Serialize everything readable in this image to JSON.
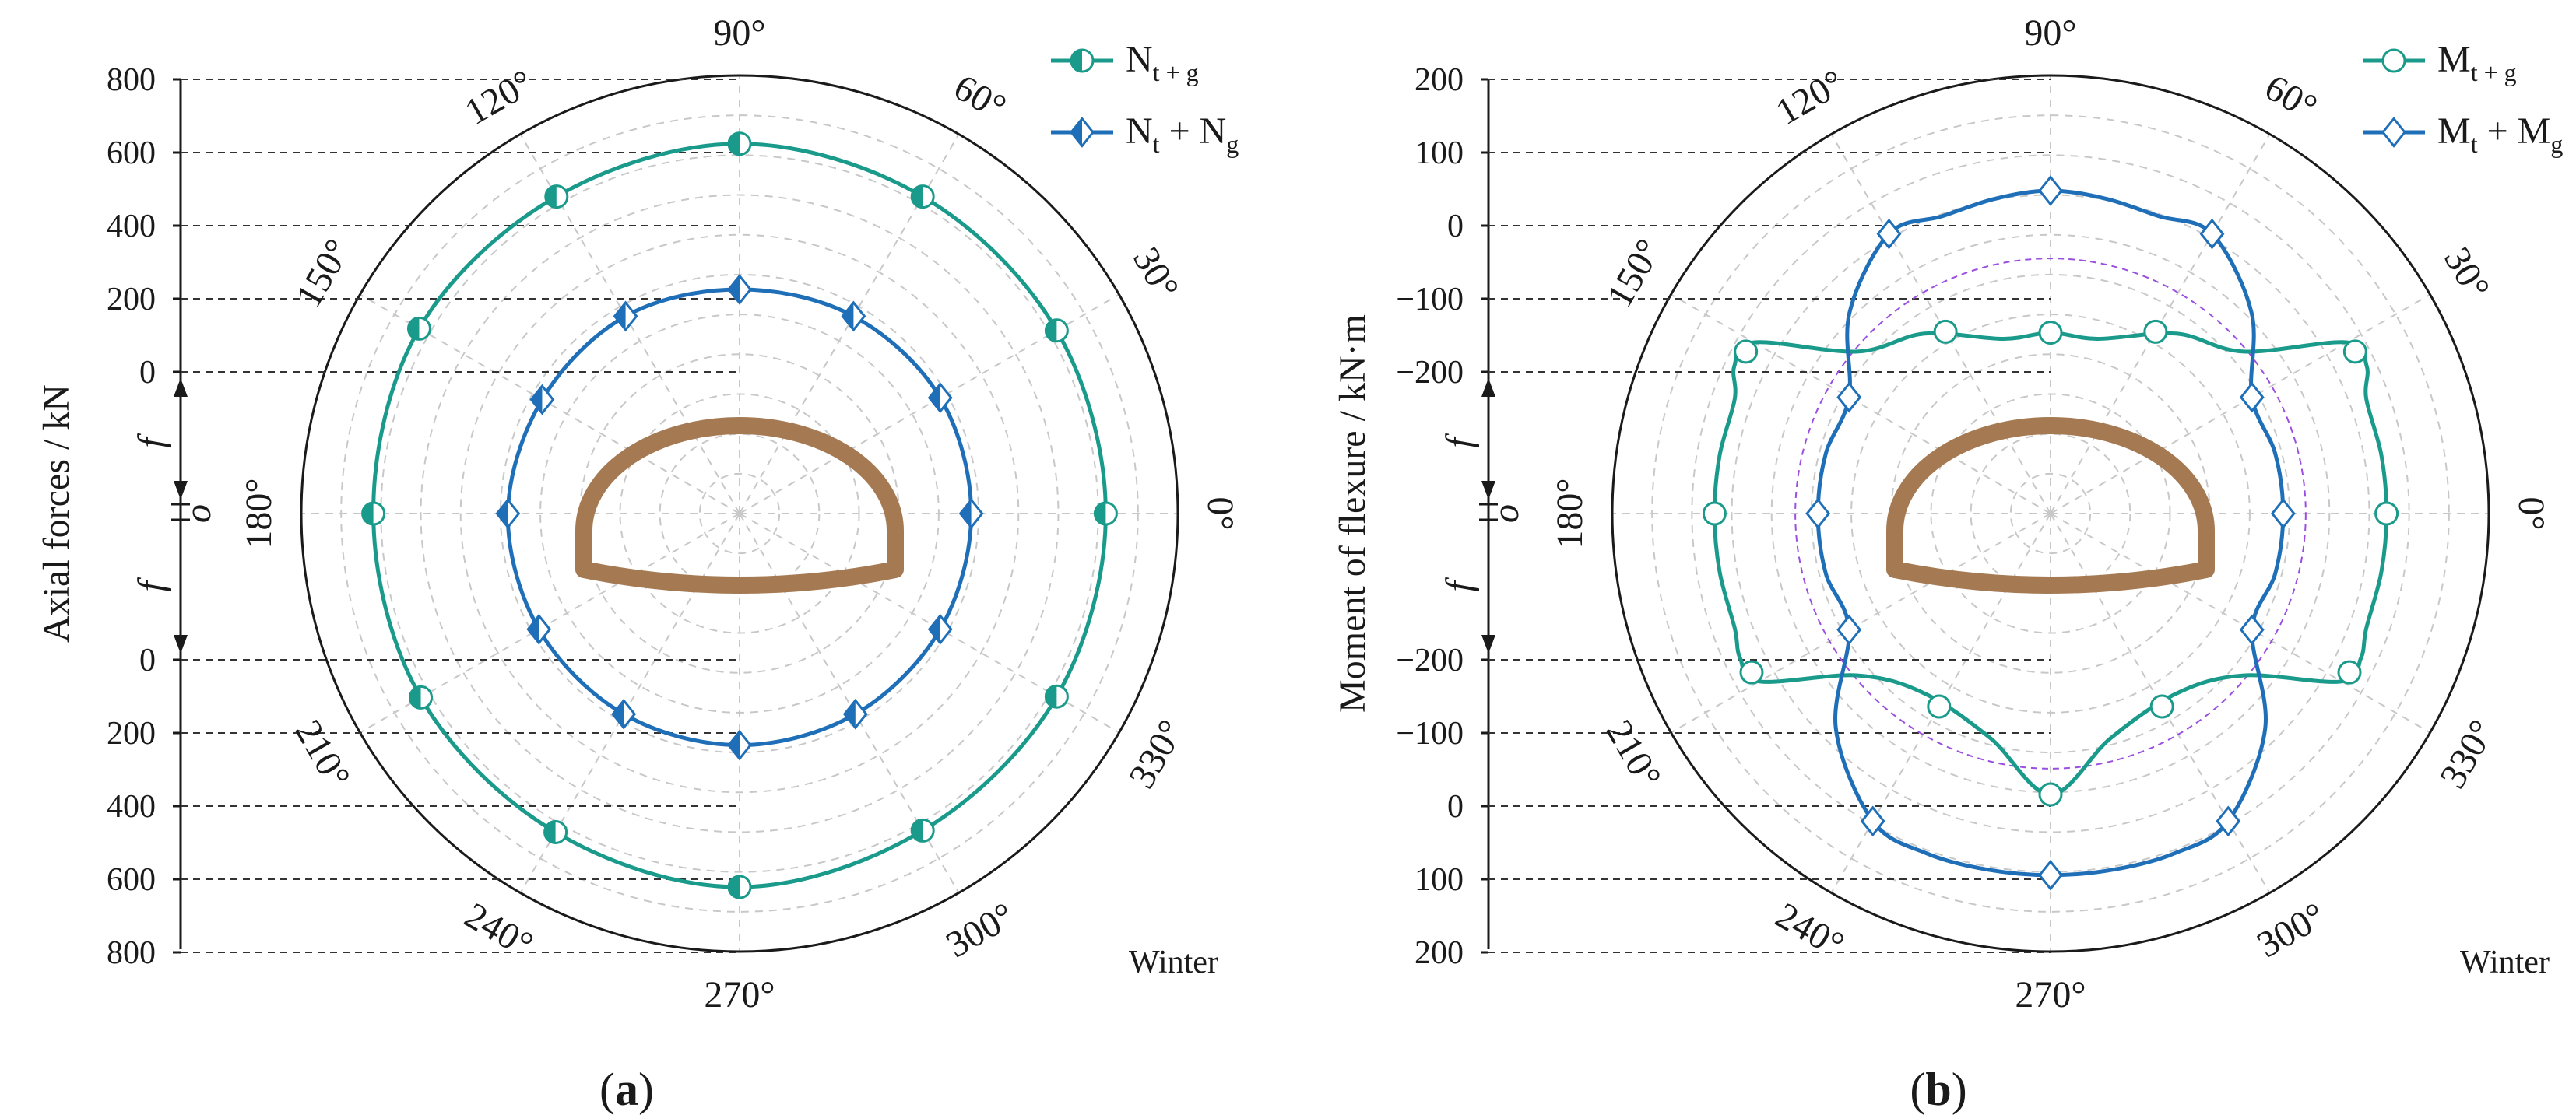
{
  "chart_data": [
    {
      "panel_label": "a",
      "type": "polar-line",
      "season": "Winter",
      "ylabel": "Axial forces / kN",
      "upper_ticks": [
        "800",
        "600",
        "400",
        "200",
        "0"
      ],
      "lower_ticks": [
        "0",
        "200",
        "400",
        "600",
        "800"
      ],
      "half_label_upper": "f",
      "half_label_lower": "f",
      "origin_label": "o",
      "angle_labels": [
        {
          "deg": 0,
          "text": "0°"
        },
        {
          "deg": 30,
          "text": "30°"
        },
        {
          "deg": 60,
          "text": "60°"
        },
        {
          "deg": 90,
          "text": "90°"
        },
        {
          "deg": 120,
          "text": "120°"
        },
        {
          "deg": 150,
          "text": "150°"
        },
        {
          "deg": 180,
          "text": "180°"
        },
        {
          "deg": 210,
          "text": "210°"
        },
        {
          "deg": 240,
          "text": "240°"
        },
        {
          "deg": 270,
          "text": "270°"
        },
        {
          "deg": 300,
          "text": "300°"
        },
        {
          "deg": 330,
          "text": "330°"
        }
      ],
      "r_domain": [
        0,
        1
      ],
      "series": [
        {
          "name": "N_t+g",
          "label_main": "N",
          "label_sub": "t + g",
          "label_rest": "",
          "label_sub2": "",
          "color": "#1a9a8a",
          "marker": "circle-half",
          "theta": [
            0,
            30,
            60,
            90,
            120,
            150,
            180,
            210,
            240,
            270,
            300,
            330,
            360
          ],
          "r": [
            0.98,
            0.98,
            0.98,
            0.99,
            0.98,
            0.99,
            0.98,
            0.985,
            0.985,
            1.0,
            0.98,
            0.98,
            0.98
          ],
          "marker_theta": [
            0,
            30,
            60,
            90,
            120,
            150,
            180,
            210,
            240,
            270,
            300,
            330
          ]
        },
        {
          "name": "N_t + N_g",
          "label_main": "N",
          "label_sub": "t",
          "label_rest": " + N",
          "label_sub2": "g",
          "color": "#1f6fb8",
          "marker": "diamond-half",
          "theta": [
            0,
            30,
            60,
            90,
            120,
            150,
            180,
            210,
            240,
            270,
            300,
            330,
            360
          ],
          "r": [
            0.62,
            0.62,
            0.61,
            0.6,
            0.61,
            0.61,
            0.62,
            0.62,
            0.62,
            0.62,
            0.62,
            0.62,
            0.62
          ],
          "marker_theta": [
            0,
            30,
            60,
            90,
            120,
            150,
            180,
            210,
            240,
            270,
            300,
            330
          ]
        }
      ]
    },
    {
      "panel_label": "b",
      "type": "polar-line",
      "season": "Winter",
      "ylabel": "Moment of flexure / kN·m",
      "upper_ticks": [
        "200",
        "100",
        "0",
        "−100",
        "−200"
      ],
      "lower_ticks": [
        "−200",
        "−100",
        "0",
        "100",
        "200"
      ],
      "half_label_upper": "f",
      "half_label_lower": "f",
      "origin_label": "o",
      "angle_labels": [
        {
          "deg": 0,
          "text": "0°"
        },
        {
          "deg": 30,
          "text": "30°"
        },
        {
          "deg": 60,
          "text": "60°"
        },
        {
          "deg": 90,
          "text": "90°"
        },
        {
          "deg": 120,
          "text": "120°"
        },
        {
          "deg": 150,
          "text": "150°"
        },
        {
          "deg": 180,
          "text": "180°"
        },
        {
          "deg": 210,
          "text": "210°"
        },
        {
          "deg": 240,
          "text": "240°"
        },
        {
          "deg": 270,
          "text": "270°"
        },
        {
          "deg": 300,
          "text": "300°"
        },
        {
          "deg": 330,
          "text": "330°"
        }
      ],
      "r_domain": [
        0,
        1
      ],
      "reference_circle_r": 0.79,
      "series": [
        {
          "name": "M_t+g",
          "label_main": "M",
          "label_sub": "t + g",
          "label_rest": "",
          "label_sub2": "",
          "color": "#1a9a8a",
          "marker": "circle-open",
          "theta": [
            0,
            10,
            20,
            25,
            30,
            40,
            55,
            75,
            90,
            105,
            125,
            140,
            150,
            155,
            160,
            170,
            180,
            190,
            200,
            205,
            210,
            220,
            235,
            255,
            270,
            285,
            305,
            320,
            330,
            335,
            340,
            350,
            360
          ],
          "r": [
            1.04,
            1.04,
            1.04,
            1.08,
            1.06,
            0.78,
            0.68,
            0.56,
            0.56,
            0.56,
            0.68,
            0.78,
            1.06,
            1.08,
            1.04,
            1.04,
            1.04,
            1.04,
            1.04,
            1.06,
            1.04,
            0.78,
            0.68,
            0.72,
            0.87,
            0.72,
            0.68,
            0.78,
            1.04,
            1.06,
            1.04,
            1.04,
            1.04
          ],
          "marker_theta": [
            0,
            28,
            60,
            90,
            120,
            152,
            180,
            208,
            240,
            270,
            300,
            332
          ]
        },
        {
          "name": "M_t + M_g",
          "label_main": "M",
          "label_sub": "t",
          "label_rest": " + M",
          "label_sub2": "g",
          "color": "#1f6fb8",
          "marker": "diamond-open",
          "theta": [
            0,
            15,
            30,
            45,
            60,
            70,
            80,
            90,
            100,
            110,
            120,
            135,
            150,
            165,
            180,
            195,
            210,
            225,
            240,
            250,
            260,
            270,
            280,
            290,
            300,
            315,
            330,
            345,
            360
          ],
          "r": [
            0.72,
            0.72,
            0.72,
            0.88,
            1.0,
            0.98,
            0.99,
            1.0,
            0.99,
            0.98,
            1.0,
            0.88,
            0.72,
            0.72,
            0.72,
            0.72,
            0.72,
            0.94,
            1.1,
            1.12,
            1.12,
            1.12,
            1.12,
            1.12,
            1.1,
            0.94,
            0.72,
            0.72,
            0.72
          ],
          "marker_theta": [
            0,
            30,
            60,
            90,
            120,
            150,
            180,
            210,
            240,
            270,
            300,
            330
          ]
        }
      ]
    }
  ]
}
